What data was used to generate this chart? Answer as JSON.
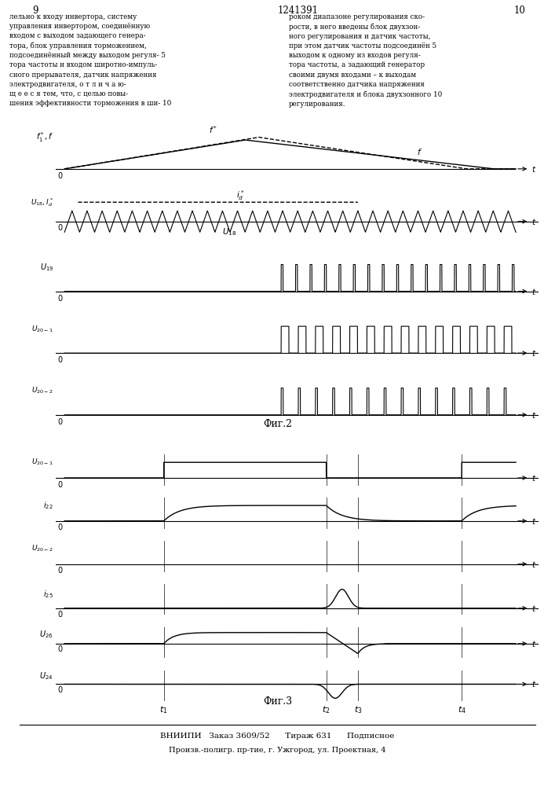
{
  "page_numbers": [
    "9",
    "10"
  ],
  "patent_number": "1241391",
  "fig2_title": "Фиг.2",
  "fig3_title": "Фиг.3",
  "footer_line1": "ВНИИПИ   Заказ 3609/52      Тираж 631      Подписное",
  "footer_line2": "Произв.-полигр. пр-тие, г. Ужгород, ул. Проектная, 4"
}
